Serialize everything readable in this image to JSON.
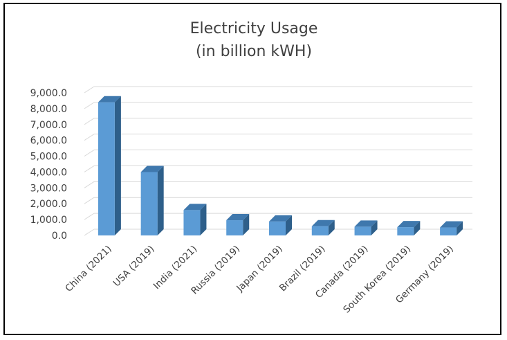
{
  "chart_data": {
    "type": "bar",
    "title": [
      "Electricity Usage",
      "(in billion kWH)"
    ],
    "categories": [
      "China (2021)",
      "USA (2019)",
      "India (2021)",
      "Russia (2019)",
      "Japan (2019)",
      "Brazil (2019)",
      "Canada (2019)",
      "South Korea (2019)",
      "Germany (2019)"
    ],
    "values": [
      8400,
      4000,
      1600,
      960,
      880,
      580,
      550,
      520,
      500
    ],
    "ylim": [
      0,
      9000
    ],
    "yticks": [
      "0.0",
      "1,000.0",
      "2,000.0",
      "3,000.0",
      "4,000.0",
      "5,000.0",
      "6,000.0",
      "7,000.0",
      "8,000.0",
      "9,000.0"
    ],
    "grid": true,
    "legend": "none",
    "colors": {
      "bar_front": "#5b9bd5",
      "bar_side": "#2e5f8a",
      "bar_top": "#3f78ad",
      "grid": "#d9d9d9",
      "text": "#404040"
    }
  }
}
